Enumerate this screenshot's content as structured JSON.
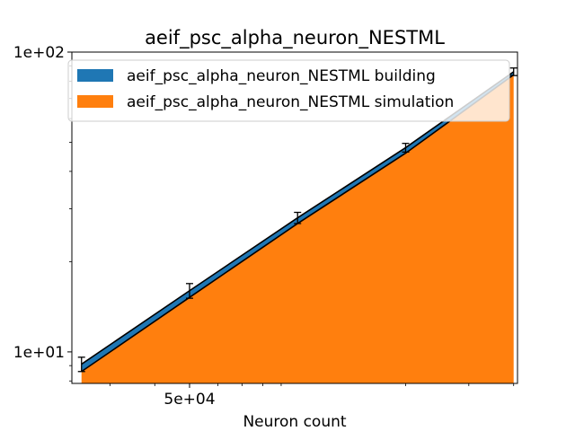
{
  "chart_data": {
    "type": "area",
    "title": "aeif_psc_alpha_neuron_NESTML",
    "xlabel": "Neuron count",
    "ylabel": "",
    "xscale": "log",
    "yscale": "log",
    "xlim": [
      23500,
      410000
    ],
    "ylim": [
      7.85,
      100
    ],
    "x_tick_labels": [
      "5e+04"
    ],
    "y_tick_labels": [
      "1e+01",
      "1e+02"
    ],
    "legend_placement": "top-right",
    "grid": false,
    "x": [
      25000,
      50000,
      100000,
      200000,
      400000
    ],
    "series": [
      {
        "name": "aeif_psc_alpha_neuron_NESTML building",
        "color": "#1f77b4",
        "values": [
          9.1,
          16.0,
          28.0,
          48.0,
          86.0
        ],
        "errors": [
          0.5,
          0.9,
          1.2,
          1.6,
          2.5
        ]
      },
      {
        "name": "aeif_psc_alpha_neuron_NESTML simulation",
        "color": "#ff7f0e",
        "values": [
          8.6,
          15.2,
          26.8,
          46.0,
          84.0
        ]
      }
    ]
  }
}
